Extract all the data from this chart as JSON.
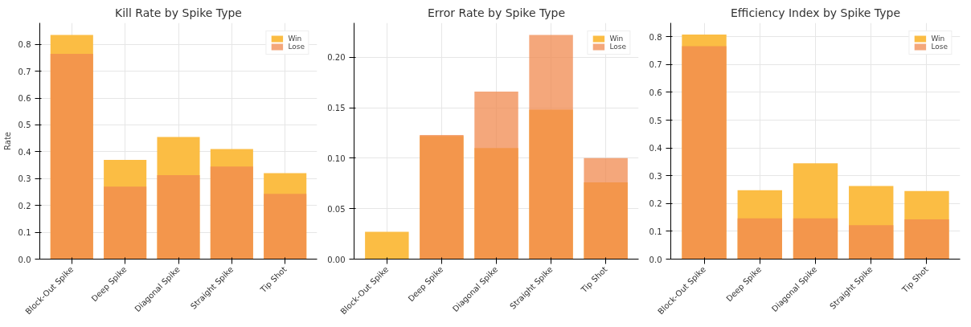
{
  "chart_data": [
    {
      "type": "bar",
      "title": "Kill Rate by Spike Type",
      "ylabel": "Rate",
      "categories": [
        "Block-Out Spike",
        "Deep Spike",
        "Diagonal Spike",
        "Straight Spike",
        "Tip Shot"
      ],
      "series": [
        {
          "name": "Win",
          "color": "#fbbd44",
          "values": [
            0.835,
            0.37,
            0.455,
            0.41,
            0.32
          ]
        },
        {
          "name": "Lose",
          "color": "#f0894f",
          "values": [
            0.765,
            0.27,
            0.313,
            0.345,
            0.243
          ]
        }
      ],
      "ylim": [
        0,
        0.88
      ],
      "yticks": [
        {
          "value": 0,
          "label": "0.0"
        },
        0.1,
        0.2,
        0.3,
        0.4,
        0.5,
        0.6,
        0.7,
        0.8
      ],
      "grid": true,
      "legend": "top right"
    },
    {
      "type": "bar",
      "title": "Error Rate by Spike Type",
      "categories": [
        "Block-Out Spike",
        "Deep Spike",
        "Diagonal Spike",
        "Straight Spike",
        "Tip Shot"
      ],
      "series": [
        {
          "name": "Win",
          "color": "#fbbd44",
          "values": [
            0.027,
            0.122,
            0.11,
            0.148,
            0.076
          ]
        },
        {
          "name": "Lose",
          "color": "#f0894f",
          "values": [
            0,
            0.123,
            0.166,
            0.222,
            0.1
          ]
        }
      ],
      "ylim": [
        0,
        0.234
      ],
      "yticks": [
        {
          "value": 0,
          "label": "0.00"
        },
        0.05,
        {
          "value": 0.1,
          "label": "0.10"
        },
        0.15,
        {
          "value": 0.2,
          "label": "0.20"
        }
      ],
      "grid": true,
      "legend": "top right"
    },
    {
      "type": "bar",
      "title": "Efficiency Index by Spike Type",
      "categories": [
        "Block-Out Spike",
        "Deep Spike",
        "Diagonal Spike",
        "Straight Spike",
        "Tip Shot"
      ],
      "series": [
        {
          "name": "Win",
          "color": "#fbbd44",
          "values": [
            0.808,
            0.248,
            0.345,
            0.263,
            0.245
          ]
        },
        {
          "name": "Lose",
          "color": "#f0894f",
          "values": [
            0.766,
            0.147,
            0.147,
            0.122,
            0.143
          ]
        }
      ],
      "ylim": [
        0,
        0.85
      ],
      "yticks": [
        {
          "value": 0,
          "label": "0.0"
        },
        0.1,
        0.2,
        0.3,
        0.4,
        0.5,
        0.6,
        0.7,
        0.8
      ],
      "grid": true,
      "legend": "top right"
    }
  ]
}
